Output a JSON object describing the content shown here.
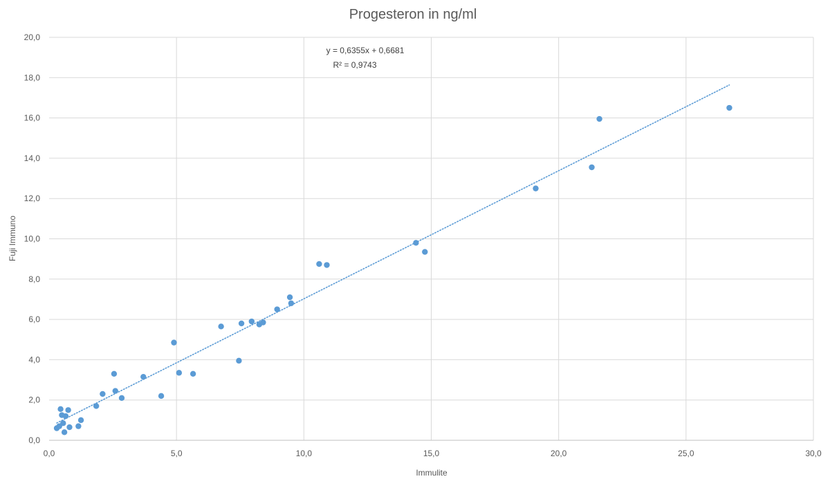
{
  "chart_data": {
    "type": "scatter",
    "title": "Progesteron in ng/ml",
    "xlabel": "Immulite",
    "ylabel": "Fuji Immuno",
    "xlim": [
      0,
      30
    ],
    "ylim": [
      0,
      20
    ],
    "x_ticks": [
      "0,0",
      "5,0",
      "10,0",
      "15,0",
      "20,0",
      "25,0",
      "30,0"
    ],
    "y_ticks": [
      "0,0",
      "2,0",
      "4,0",
      "6,0",
      "8,0",
      "10,0",
      "12,0",
      "14,0",
      "16,0",
      "18,0",
      "20,0"
    ],
    "grid": true,
    "legend": "none",
    "marker_color": "#5b9bd5",
    "trendline": {
      "type": "linear",
      "slope": 0.6355,
      "intercept": 0.6681,
      "x_range": [
        0.3,
        26.7
      ],
      "style": "dotted",
      "equation_label": "y = 0,6355x + 0,6681",
      "r2_label": "R² = 0,9743"
    },
    "points": [
      {
        "x": 0.3,
        "y": 0.6
      },
      {
        "x": 0.4,
        "y": 0.7
      },
      {
        "x": 0.45,
        "y": 1.55
      },
      {
        "x": 0.5,
        "y": 1.25
      },
      {
        "x": 0.55,
        "y": 0.85
      },
      {
        "x": 0.6,
        "y": 0.4
      },
      {
        "x": 0.65,
        "y": 1.2
      },
      {
        "x": 0.75,
        "y": 1.5
      },
      {
        "x": 0.8,
        "y": 0.65
      },
      {
        "x": 1.15,
        "y": 0.7
      },
      {
        "x": 1.25,
        "y": 1.0
      },
      {
        "x": 1.85,
        "y": 1.7
      },
      {
        "x": 2.1,
        "y": 2.3
      },
      {
        "x": 2.55,
        "y": 3.3
      },
      {
        "x": 2.6,
        "y": 2.45
      },
      {
        "x": 2.85,
        "y": 2.1
      },
      {
        "x": 3.7,
        "y": 3.15
      },
      {
        "x": 4.4,
        "y": 2.2
      },
      {
        "x": 4.9,
        "y": 4.85
      },
      {
        "x": 5.1,
        "y": 3.35
      },
      {
        "x": 5.65,
        "y": 3.3
      },
      {
        "x": 6.75,
        "y": 5.65
      },
      {
        "x": 7.45,
        "y": 3.95
      },
      {
        "x": 7.55,
        "y": 5.8
      },
      {
        "x": 7.95,
        "y": 5.9
      },
      {
        "x": 8.25,
        "y": 5.75
      },
      {
        "x": 8.4,
        "y": 5.85
      },
      {
        "x": 8.95,
        "y": 6.5
      },
      {
        "x": 9.45,
        "y": 7.1
      },
      {
        "x": 9.5,
        "y": 6.8
      },
      {
        "x": 10.6,
        "y": 8.75
      },
      {
        "x": 10.9,
        "y": 8.7
      },
      {
        "x": 14.4,
        "y": 9.8
      },
      {
        "x": 14.75,
        "y": 9.35
      },
      {
        "x": 19.1,
        "y": 12.5
      },
      {
        "x": 21.3,
        "y": 13.55
      },
      {
        "x": 21.6,
        "y": 15.95
      },
      {
        "x": 26.7,
        "y": 16.5
      }
    ]
  }
}
